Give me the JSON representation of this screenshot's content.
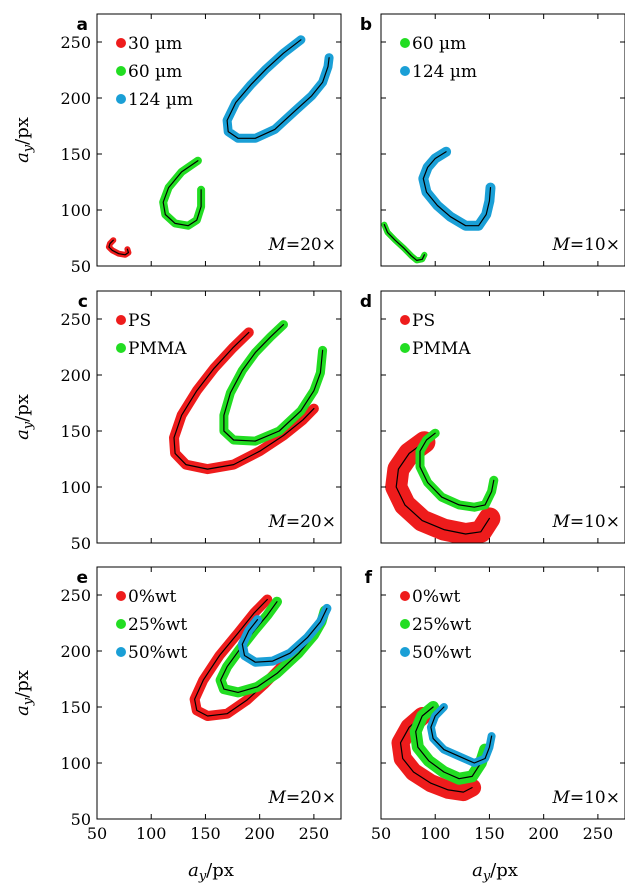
{
  "chart_data": [
    {
      "panel": "a",
      "type": "scatter",
      "magnification": "M=20×",
      "xlim": [
        50,
        275
      ],
      "ylim": [
        50,
        275
      ],
      "xticks": [
        50,
        100,
        150,
        200,
        250
      ],
      "yticks": [
        50,
        100,
        150,
        200,
        250
      ],
      "series": [
        {
          "name": "30 µm",
          "color": "#ee1c1c",
          "width": 6,
          "points": [
            [
              65,
              73
            ],
            [
              62,
              70
            ],
            [
              61,
              67
            ],
            [
              64,
              64
            ],
            [
              70,
              61
            ],
            [
              76,
              60
            ],
            [
              79,
              62
            ],
            [
              78,
              65
            ]
          ]
        },
        {
          "name": "60 µm",
          "color": "#22dd22",
          "width": 8,
          "points": [
            [
              143,
              144
            ],
            [
              128,
              134
            ],
            [
              116,
              120
            ],
            [
              111,
              107
            ],
            [
              113,
              96
            ],
            [
              122,
              88
            ],
            [
              134,
              86
            ],
            [
              142,
              91
            ],
            [
              146,
              103
            ],
            [
              146,
              118
            ]
          ]
        },
        {
          "name": "124 µm",
          "color": "#1a9fd6",
          "width": 9,
          "points": [
            [
              238,
              252
            ],
            [
              222,
              240
            ],
            [
              206,
              226
            ],
            [
              192,
              212
            ],
            [
              178,
              196
            ],
            [
              170,
              180
            ],
            [
              171,
              170
            ],
            [
              180,
              164
            ],
            [
              196,
              164
            ],
            [
              214,
              172
            ],
            [
              232,
              188
            ],
            [
              248,
              202
            ],
            [
              258,
              214
            ],
            [
              263,
              228
            ],
            [
              264,
              236
            ]
          ]
        }
      ]
    },
    {
      "panel": "b",
      "type": "scatter",
      "magnification": "M=10×",
      "xlim": [
        50,
        275
      ],
      "ylim": [
        50,
        275
      ],
      "xticks": [
        50,
        100,
        150,
        200,
        250
      ],
      "yticks": [
        50,
        100,
        150,
        200,
        250
      ],
      "series": [
        {
          "name": "60 µm",
          "color": "#22dd22",
          "width": 6,
          "points": [
            [
              53,
              87
            ],
            [
              56,
              80
            ],
            [
              63,
              73
            ],
            [
              71,
              66
            ],
            [
              78,
              59
            ],
            [
              83,
              55
            ],
            [
              88,
              56
            ],
            [
              90,
              60
            ]
          ]
        },
        {
          "name": "124 µm",
          "color": "#1a9fd6",
          "width": 10,
          "points": [
            [
              110,
              152
            ],
            [
              100,
              146
            ],
            [
              93,
              138
            ],
            [
              89,
              128
            ],
            [
              92,
              116
            ],
            [
              102,
              104
            ],
            [
              114,
              94
            ],
            [
              128,
              86
            ],
            [
              140,
              86
            ],
            [
              147,
              96
            ],
            [
              150,
              108
            ],
            [
              151,
              120
            ]
          ]
        }
      ]
    },
    {
      "panel": "c",
      "type": "scatter",
      "magnification": "M=20×",
      "xlim": [
        50,
        275
      ],
      "ylim": [
        50,
        275
      ],
      "xticks": [
        50,
        100,
        150,
        200,
        250
      ],
      "yticks": [
        50,
        100,
        150,
        200,
        250
      ],
      "series": [
        {
          "name": "PS",
          "color": "#ee1c1c",
          "width": 10,
          "points": [
            [
              190,
              238
            ],
            [
              175,
              224
            ],
            [
              158,
              206
            ],
            [
              142,
              186
            ],
            [
              128,
              164
            ],
            [
              121,
              144
            ],
            [
              122,
              130
            ],
            [
              132,
              120
            ],
            [
              152,
              116
            ],
            [
              176,
              120
            ],
            [
              200,
              132
            ],
            [
              222,
              146
            ],
            [
              240,
              160
            ],
            [
              250,
              170
            ]
          ]
        },
        {
          "name": "PMMA",
          "color": "#22dd22",
          "width": 9,
          "points": [
            [
              222,
              245
            ],
            [
              210,
              234
            ],
            [
              196,
              220
            ],
            [
              184,
              204
            ],
            [
              173,
              184
            ],
            [
              167,
              164
            ],
            [
              167,
              150
            ],
            [
              176,
              142
            ],
            [
              196,
              141
            ],
            [
              218,
              150
            ],
            [
              238,
              168
            ],
            [
              250,
              186
            ],
            [
              256,
              202
            ],
            [
              258,
              222
            ]
          ]
        }
      ]
    },
    {
      "panel": "d",
      "type": "scatter",
      "magnification": "M=10×",
      "xlim": [
        50,
        275
      ],
      "ylim": [
        50,
        275
      ],
      "xticks": [
        50,
        100,
        150,
        200,
        250
      ],
      "yticks": [
        50,
        100,
        150,
        200,
        250
      ],
      "series": [
        {
          "name": "PS",
          "color": "#ee1c1c",
          "width": 22,
          "points": [
            [
              90,
              140
            ],
            [
              76,
              130
            ],
            [
              66,
              116
            ],
            [
              64,
              100
            ],
            [
              72,
              84
            ],
            [
              88,
              70
            ],
            [
              108,
              62
            ],
            [
              128,
              58
            ],
            [
              142,
              60
            ],
            [
              150,
              72
            ]
          ]
        },
        {
          "name": "PMMA",
          "color": "#22dd22",
          "width": 9,
          "points": [
            [
              100,
              148
            ],
            [
              92,
              142
            ],
            [
              86,
              132
            ],
            [
              86,
              118
            ],
            [
              93,
              104
            ],
            [
              106,
              91
            ],
            [
              122,
              84
            ],
            [
              136,
              82
            ],
            [
              146,
              84
            ],
            [
              152,
              96
            ],
            [
              154,
              106
            ]
          ]
        }
      ]
    },
    {
      "panel": "e",
      "type": "scatter",
      "magnification": "M=20×",
      "xlim": [
        50,
        275
      ],
      "ylim": [
        50,
        275
      ],
      "xticks": [
        50,
        100,
        150,
        200,
        250
      ],
      "yticks": [
        50,
        100,
        150,
        200,
        250
      ],
      "series": [
        {
          "name": "0%wt",
          "color": "#ee1c1c",
          "width": 10,
          "points": [
            [
              207,
              246
            ],
            [
              195,
              234
            ],
            [
              180,
              216
            ],
            [
              163,
              196
            ],
            [
              148,
              174
            ],
            [
              140,
              157
            ],
            [
              142,
              147
            ],
            [
              152,
              142
            ],
            [
              170,
              144
            ],
            [
              188,
              156
            ],
            [
              204,
              170
            ],
            [
              218,
              184
            ],
            [
              228,
              196
            ]
          ]
        },
        {
          "name": "25%wt",
          "color": "#22dd22",
          "width": 10,
          "points": [
            [
              216,
              244
            ],
            [
              207,
              232
            ],
            [
              195,
              218
            ],
            [
              182,
              202
            ],
            [
              170,
              186
            ],
            [
              164,
              174
            ],
            [
              167,
              166
            ],
            [
              180,
              163
            ],
            [
              198,
              168
            ],
            [
              216,
              180
            ],
            [
              236,
              198
            ],
            [
              250,
              214
            ],
            [
              257,
              226
            ],
            [
              260,
              236
            ]
          ]
        },
        {
          "name": "50%wt",
          "color": "#1a9fd6",
          "width": 9,
          "points": [
            [
              198,
              228
            ],
            [
              190,
              218
            ],
            [
              184,
              206
            ],
            [
              186,
              196
            ],
            [
              196,
              190
            ],
            [
              212,
              191
            ],
            [
              228,
              198
            ],
            [
              244,
              212
            ],
            [
              256,
              226
            ],
            [
              262,
              238
            ]
          ]
        }
      ]
    },
    {
      "panel": "f",
      "type": "scatter",
      "magnification": "M=10×",
      "xlim": [
        50,
        275
      ],
      "ylim": [
        50,
        275
      ],
      "xticks": [
        50,
        100,
        150,
        200,
        250
      ],
      "yticks": [
        50,
        100,
        150,
        200,
        250
      ],
      "series": [
        {
          "name": "0%wt",
          "color": "#ee1c1c",
          "width": 18,
          "points": [
            [
              88,
              142
            ],
            [
              76,
              132
            ],
            [
              68,
              118
            ],
            [
              70,
              104
            ],
            [
              80,
              92
            ],
            [
              96,
              82
            ],
            [
              112,
              76
            ],
            [
              126,
              74
            ],
            [
              134,
              78
            ]
          ]
        },
        {
          "name": "25%wt",
          "color": "#22dd22",
          "width": 12,
          "points": [
            [
              98,
              150
            ],
            [
              88,
              142
            ],
            [
              82,
              128
            ],
            [
              84,
              114
            ],
            [
              94,
              102
            ],
            [
              108,
              92
            ],
            [
              122,
              86
            ],
            [
              134,
              88
            ],
            [
              142,
              100
            ],
            [
              146,
              112
            ]
          ]
        },
        {
          "name": "50%wt",
          "color": "#1a9fd6",
          "width": 8,
          "points": [
            [
              108,
              150
            ],
            [
              100,
              142
            ],
            [
              96,
              132
            ],
            [
              98,
              122
            ],
            [
              108,
              112
            ],
            [
              122,
              106
            ],
            [
              136,
              100
            ],
            [
              146,
              104
            ],
            [
              150,
              114
            ],
            [
              152,
              124
            ]
          ]
        }
      ]
    }
  ],
  "axis_labels": {
    "ylabel": "a_y/px",
    "xlabel": "a_y/px"
  }
}
